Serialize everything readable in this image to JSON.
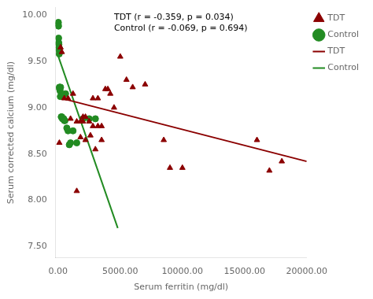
{
  "chart_data": {
    "type": "scatter",
    "x_label": "Serum ferritin (mg/dl)",
    "y_label": "Serum corrected calcium (mg/dl)",
    "series": [
      {
        "name": "TDT",
        "type": "scatter",
        "color": "#8B0000",
        "marker": "triangle",
        "x": [
          200,
          300,
          500,
          800,
          1000,
          1200,
          1500,
          1800,
          2000,
          2200,
          2500,
          2800,
          3000,
          3200,
          3500,
          3800,
          4000,
          4200,
          4500,
          5000,
          5500,
          6000,
          7000,
          8500,
          9000,
          10000,
          16000,
          17000,
          18000,
          3500,
          2200,
          2600,
          1500,
          2000,
          2800,
          3200,
          100,
          1800
        ],
        "values": [
          9.65,
          9.6,
          9.1,
          9.1,
          8.88,
          9.15,
          8.85,
          8.85,
          8.9,
          8.9,
          8.85,
          8.8,
          8.55,
          8.8,
          8.8,
          9.2,
          9.2,
          9.15,
          9.0,
          9.55,
          9.3,
          9.22,
          9.25,
          8.65,
          8.35,
          8.35,
          8.65,
          8.32,
          8.42,
          8.65,
          8.65,
          8.7,
          8.1,
          8.85,
          9.1,
          9.1,
          8.62,
          8.68
        ]
      },
      {
        "name": "Control",
        "type": "scatter",
        "color": "#228B22",
        "marker": "circle",
        "x": [
          10,
          20,
          30,
          40,
          50,
          60,
          70,
          80,
          90,
          100,
          120,
          140,
          160,
          180,
          200,
          250,
          300,
          350,
          400,
          450,
          500,
          550,
          600,
          700,
          800,
          900,
          1000,
          1200,
          1500,
          2000,
          2500,
          3000
        ],
        "values": [
          9.9,
          9.92,
          9.88,
          9.75,
          9.7,
          9.68,
          9.65,
          9.62,
          9.58,
          9.22,
          9.2,
          9.22,
          9.18,
          9.12,
          9.22,
          8.9,
          8.9,
          8.88,
          8.88,
          8.88,
          8.86,
          8.86,
          9.15,
          8.78,
          8.75,
          8.6,
          8.62,
          8.75,
          8.62,
          8.88,
          8.88,
          8.88
        ]
      },
      {
        "name": "TDT",
        "type": "line",
        "color": "#8B0000",
        "line_style": "solid",
        "x": [
          0,
          20000
        ],
        "values": [
          9.11,
          8.42
        ]
      },
      {
        "name": "Control",
        "type": "line",
        "color": "#228B22",
        "line_style": "solid",
        "x": [
          0,
          4800
        ],
        "values": [
          9.56,
          7.7
        ]
      }
    ],
    "xlim": [
      -200,
      20000
    ],
    "ylim": [
      7.38,
      10.08
    ],
    "xticks": [
      {
        "value": 0,
        "label": "0.00"
      },
      {
        "value": 5000,
        "label": "5000.00"
      },
      {
        "value": 10000,
        "label": "10000.00"
      },
      {
        "value": 15000,
        "label": "15000.00"
      },
      {
        "value": 20000,
        "label": "20000.00"
      }
    ],
    "yticks": [
      {
        "value": 7.5,
        "label": "7.50"
      },
      {
        "value": 8.0,
        "label": "8.00"
      },
      {
        "value": 8.5,
        "label": "8.50"
      },
      {
        "value": 9.0,
        "label": "9.00"
      },
      {
        "value": 9.5,
        "label": "9.50"
      },
      {
        "value": 10.0,
        "label": "10.00"
      }
    ],
    "annotations": [
      {
        "text": "TDT (r = -0.359, p = 0.034)\nControl (r = -0.069, p = 0.694)",
        "x": 4500,
        "y": 10.02
      }
    ],
    "grid": false,
    "legend": "right"
  }
}
